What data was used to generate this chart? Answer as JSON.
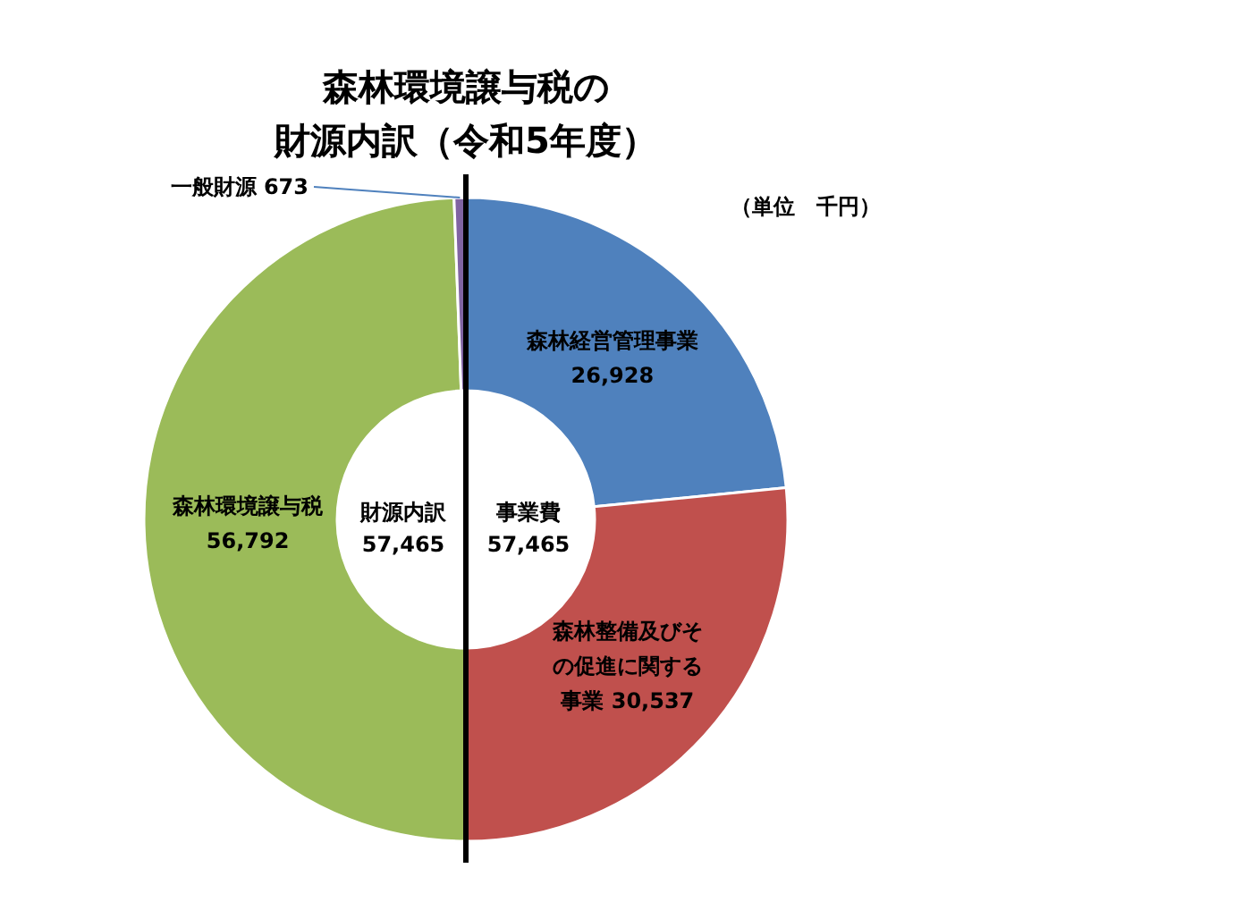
{
  "chart_data": {
    "type": "donut",
    "title": "森林環境譲与税の",
    "subtitle": "財源内訳（令和5年度）",
    "categories": [
      "森林経営管理事業",
      "森林整備及びその促進に関する事業",
      "森林環境譲与税",
      "一般財源"
    ],
    "values": [
      26928,
      30537,
      56792,
      673
    ],
    "value_labels": [
      "26,928",
      "30,537",
      "56,792",
      "673"
    ],
    "colors": [
      "#4f81bd",
      "#c0504d",
      "#9bbb59",
      "#8064a2"
    ],
    "annotations": [
      "財源内訳\n57,465",
      "事業費\n57,465",
      "（単位　千円）"
    ]
  }
}
